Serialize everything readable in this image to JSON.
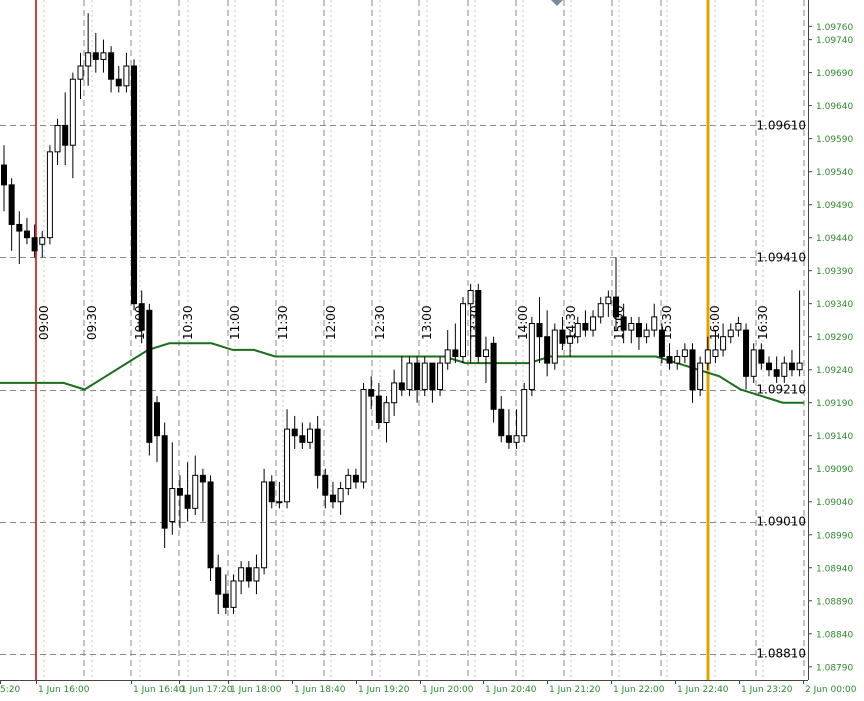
{
  "chart_data": {
    "type": "candlestick",
    "ylim": [
      1.0877,
      1.098
    ],
    "y_ticks": [
      "1.09760",
      "1.09740",
      "1.09690",
      "1.09640",
      "1.09590",
      "1.09540",
      "1.09490",
      "1.09440",
      "1.09390",
      "1.09340",
      "1.09290",
      "1.09240",
      "1.09190",
      "1.09140",
      "1.09090",
      "1.09040",
      "1.08990",
      "1.08940",
      "1.08890",
      "1.08840",
      "1.08790"
    ],
    "level_labels": [
      "1.09610",
      "1.09410",
      "1.09210",
      "1.09010",
      "1.08810"
    ],
    "time_labels": [
      "5:20",
      "1 Jun 16:00",
      "1 Jun 16:40",
      "1 Jun 17:20",
      "1 Jun 18:00",
      "1 Jun 18:40",
      "1 Jun 19:20",
      "1 Jun 20:00",
      "1 Jun 20:40",
      "1 Jun 21:20",
      "1 Jun 22:00",
      "1 Jun 22:40",
      "1 Jun 23:20",
      "2 Jun 00:00"
    ],
    "session_labels": [
      "09:00",
      "09:30",
      "10:00",
      "10:30",
      "11:00",
      "11:30",
      "12:00",
      "12:30",
      "13:00",
      "13:30",
      "14:00",
      "14:30",
      "15:00",
      "15:30",
      "16:00",
      "16:30"
    ],
    "candles": [
      {
        "o": 1.0955,
        "h": 1.0958,
        "l": 1.0948,
        "c": 1.0952
      },
      {
        "o": 1.0952,
        "h": 1.0953,
        "l": 1.0942,
        "c": 1.0946
      },
      {
        "o": 1.0946,
        "h": 1.0948,
        "l": 1.094,
        "c": 1.0945
      },
      {
        "o": 1.0945,
        "h": 1.0947,
        "l": 1.0943,
        "c": 1.0944
      },
      {
        "o": 1.0944,
        "h": 1.0946,
        "l": 1.0941,
        "c": 1.0942
      },
      {
        "o": 1.0943,
        "h": 1.0945,
        "l": 1.0941,
        "c": 1.0944
      },
      {
        "o": 1.0944,
        "h": 1.0958,
        "l": 1.0943,
        "c": 1.0957
      },
      {
        "o": 1.0957,
        "h": 1.0962,
        "l": 1.0955,
        "c": 1.0961
      },
      {
        "o": 1.0961,
        "h": 1.0966,
        "l": 1.0955,
        "c": 1.0958
      },
      {
        "o": 1.0958,
        "h": 1.0969,
        "l": 1.0953,
        "c": 1.0968
      },
      {
        "o": 1.0968,
        "h": 1.0972,
        "l": 1.0965,
        "c": 1.097
      },
      {
        "o": 1.097,
        "h": 1.0978,
        "l": 1.0967,
        "c": 1.0972
      },
      {
        "o": 1.0972,
        "h": 1.0975,
        "l": 1.0969,
        "c": 1.0971
      },
      {
        "o": 1.0971,
        "h": 1.0974,
        "l": 1.0969,
        "c": 1.0972
      },
      {
        "o": 1.0972,
        "h": 1.0973,
        "l": 1.0966,
        "c": 1.0968
      },
      {
        "o": 1.0968,
        "h": 1.097,
        "l": 1.0966,
        "c": 1.0967
      },
      {
        "o": 1.0967,
        "h": 1.0972,
        "l": 1.0966,
        "c": 1.097
      },
      {
        "o": 1.097,
        "h": 1.0971,
        "l": 1.0933,
        "c": 1.0934
      },
      {
        "o": 1.0934,
        "h": 1.0936,
        "l": 1.0928,
        "c": 1.093
      },
      {
        "o": 1.0933,
        "h": 1.0934,
        "l": 1.0911,
        "c": 1.0913
      },
      {
        "o": 1.0919,
        "h": 1.092,
        "l": 1.091,
        "c": 1.0914
      },
      {
        "o": 1.0914,
        "h": 1.0916,
        "l": 1.0897,
        "c": 1.09
      },
      {
        "o": 1.0901,
        "h": 1.0913,
        "l": 1.0899,
        "c": 1.0906
      },
      {
        "o": 1.0906,
        "h": 1.0908,
        "l": 1.09,
        "c": 1.0905
      },
      {
        "o": 1.0905,
        "h": 1.091,
        "l": 1.0901,
        "c": 1.0903
      },
      {
        "o": 1.0903,
        "h": 1.0911,
        "l": 1.0902,
        "c": 1.0908
      },
      {
        "o": 1.0908,
        "h": 1.0909,
        "l": 1.0901,
        "c": 1.0907
      },
      {
        "o": 1.0907,
        "h": 1.0908,
        "l": 1.0892,
        "c": 1.0894
      },
      {
        "o": 1.0894,
        "h": 1.0896,
        "l": 1.0887,
        "c": 1.089
      },
      {
        "o": 1.089,
        "h": 1.0893,
        "l": 1.0887,
        "c": 1.0888
      },
      {
        "o": 1.0888,
        "h": 1.0893,
        "l": 1.0887,
        "c": 1.0892
      },
      {
        "o": 1.0892,
        "h": 1.0895,
        "l": 1.089,
        "c": 1.0894
      },
      {
        "o": 1.0894,
        "h": 1.0895,
        "l": 1.0891,
        "c": 1.0892
      },
      {
        "o": 1.0892,
        "h": 1.0896,
        "l": 1.089,
        "c": 1.0894
      },
      {
        "o": 1.0894,
        "h": 1.0909,
        "l": 1.0893,
        "c": 1.0907
      },
      {
        "o": 1.0907,
        "h": 1.0908,
        "l": 1.0903,
        "c": 1.0904
      },
      {
        "o": 1.0904,
        "h": 1.0907,
        "l": 1.0903,
        "c": 1.0904
      },
      {
        "o": 1.0904,
        "h": 1.0918,
        "l": 1.0903,
        "c": 1.0915
      },
      {
        "o": 1.0915,
        "h": 1.0917,
        "l": 1.0912,
        "c": 1.0914
      },
      {
        "o": 1.0914,
        "h": 1.0916,
        "l": 1.0912,
        "c": 1.0913
      },
      {
        "o": 1.0913,
        "h": 1.0916,
        "l": 1.0912,
        "c": 1.0915
      },
      {
        "o": 1.0915,
        "h": 1.0917,
        "l": 1.0906,
        "c": 1.0908
      },
      {
        "o": 1.0908,
        "h": 1.0909,
        "l": 1.0903,
        "c": 1.0905
      },
      {
        "o": 1.0905,
        "h": 1.0907,
        "l": 1.0903,
        "c": 1.0904
      },
      {
        "o": 1.0904,
        "h": 1.0907,
        "l": 1.0902,
        "c": 1.0906
      },
      {
        "o": 1.0906,
        "h": 1.0909,
        "l": 1.0905,
        "c": 1.0908
      },
      {
        "o": 1.0908,
        "h": 1.0909,
        "l": 1.0906,
        "c": 1.0907
      },
      {
        "o": 1.0907,
        "h": 1.0922,
        "l": 1.0906,
        "c": 1.0921
      },
      {
        "o": 1.0921,
        "h": 1.0923,
        "l": 1.0918,
        "c": 1.092
      },
      {
        "o": 1.092,
        "h": 1.0922,
        "l": 1.0915,
        "c": 1.0916
      },
      {
        "o": 1.0916,
        "h": 1.092,
        "l": 1.0913,
        "c": 1.0919
      },
      {
        "o": 1.0919,
        "h": 1.0924,
        "l": 1.0917,
        "c": 1.0922
      },
      {
        "o": 1.0922,
        "h": 1.0926,
        "l": 1.092,
        "c": 1.0921
      },
      {
        "o": 1.0921,
        "h": 1.0926,
        "l": 1.092,
        "c": 1.0925
      },
      {
        "o": 1.0925,
        "h": 1.0926,
        "l": 1.0919,
        "c": 1.0921
      },
      {
        "o": 1.0921,
        "h": 1.0926,
        "l": 1.092,
        "c": 1.0925
      },
      {
        "o": 1.0925,
        "h": 1.0925,
        "l": 1.0919,
        "c": 1.0921
      },
      {
        "o": 1.0921,
        "h": 1.0926,
        "l": 1.092,
        "c": 1.0925
      },
      {
        "o": 1.0925,
        "h": 1.093,
        "l": 1.0924,
        "c": 1.0927
      },
      {
        "o": 1.0927,
        "h": 1.0931,
        "l": 1.0925,
        "c": 1.0926
      },
      {
        "o": 1.0926,
        "h": 1.0935,
        "l": 1.0925,
        "c": 1.0934
      },
      {
        "o": 1.0934,
        "h": 1.0937,
        "l": 1.0925,
        "c": 1.0936
      },
      {
        "o": 1.0936,
        "h": 1.0937,
        "l": 1.0925,
        "c": 1.0926
      },
      {
        "o": 1.0926,
        "h": 1.0929,
        "l": 1.0922,
        "c": 1.0927
      },
      {
        "o": 1.0928,
        "h": 1.0929,
        "l": 1.0916,
        "c": 1.0918
      },
      {
        "o": 1.0918,
        "h": 1.092,
        "l": 1.0913,
        "c": 1.0914
      },
      {
        "o": 1.0914,
        "h": 1.0918,
        "l": 1.0912,
        "c": 1.0913
      },
      {
        "o": 1.0913,
        "h": 1.0918,
        "l": 1.0912,
        "c": 1.0914
      },
      {
        "o": 1.0914,
        "h": 1.0922,
        "l": 1.0913,
        "c": 1.0921
      },
      {
        "o": 1.0921,
        "h": 1.0932,
        "l": 1.092,
        "c": 1.0931
      },
      {
        "o": 1.0931,
        "h": 1.0935,
        "l": 1.0925,
        "c": 1.0929
      },
      {
        "o": 1.0929,
        "h": 1.0933,
        "l": 1.0923,
        "c": 1.0925
      },
      {
        "o": 1.0925,
        "h": 1.0931,
        "l": 1.0924,
        "c": 1.093
      },
      {
        "o": 1.093,
        "h": 1.0932,
        "l": 1.0927,
        "c": 1.0928
      },
      {
        "o": 1.0928,
        "h": 1.093,
        "l": 1.0926,
        "c": 1.0929
      },
      {
        "o": 1.0929,
        "h": 1.0932,
        "l": 1.0928,
        "c": 1.0931
      },
      {
        "o": 1.0931,
        "h": 1.0933,
        "l": 1.0929,
        "c": 1.093
      },
      {
        "o": 1.093,
        "h": 1.0933,
        "l": 1.0929,
        "c": 1.0932
      },
      {
        "o": 1.0932,
        "h": 1.0935,
        "l": 1.0931,
        "c": 1.0934
      },
      {
        "o": 1.0934,
        "h": 1.0936,
        "l": 1.0932,
        "c": 1.0935
      },
      {
        "o": 1.0935,
        "h": 1.0941,
        "l": 1.093,
        "c": 1.0932
      },
      {
        "o": 1.0932,
        "h": 1.0934,
        "l": 1.0928,
        "c": 1.093
      },
      {
        "o": 1.093,
        "h": 1.0932,
        "l": 1.0928,
        "c": 1.0931
      },
      {
        "o": 1.0931,
        "h": 1.0932,
        "l": 1.0927,
        "c": 1.0929
      },
      {
        "o": 1.0929,
        "h": 1.0931,
        "l": 1.0928,
        "c": 1.093
      },
      {
        "o": 1.093,
        "h": 1.0934,
        "l": 1.0929,
        "c": 1.0932
      },
      {
        "o": 1.093,
        "h": 1.0931,
        "l": 1.0925,
        "c": 1.0926
      },
      {
        "o": 1.0926,
        "h": 1.0928,
        "l": 1.0924,
        "c": 1.0925
      },
      {
        "o": 1.0925,
        "h": 1.0927,
        "l": 1.0924,
        "c": 1.0926
      },
      {
        "o": 1.0926,
        "h": 1.0928,
        "l": 1.0925,
        "c": 1.0927
      },
      {
        "o": 1.0927,
        "h": 1.0928,
        "l": 1.0919,
        "c": 1.0921
      },
      {
        "o": 1.0921,
        "h": 1.0926,
        "l": 1.092,
        "c": 1.0925
      },
      {
        "o": 1.0925,
        "h": 1.0929,
        "l": 1.0924,
        "c": 1.0927
      },
      {
        "o": 1.0926,
        "h": 1.093,
        "l": 1.0925,
        "c": 1.0927
      },
      {
        "o": 1.0927,
        "h": 1.0931,
        "l": 1.0926,
        "c": 1.0929
      },
      {
        "o": 1.0929,
        "h": 1.0931,
        "l": 1.0928,
        "c": 1.093
      },
      {
        "o": 1.093,
        "h": 1.0932,
        "l": 1.0929,
        "c": 1.0931
      },
      {
        "o": 1.093,
        "h": 1.0931,
        "l": 1.0921,
        "c": 1.0923
      },
      {
        "o": 1.0923,
        "h": 1.0928,
        "l": 1.0922,
        "c": 1.0927
      },
      {
        "o": 1.0927,
        "h": 1.0928,
        "l": 1.0924,
        "c": 1.0925
      },
      {
        "o": 1.0925,
        "h": 1.0926,
        "l": 1.0923,
        "c": 1.0924
      },
      {
        "o": 1.0924,
        "h": 1.0926,
        "l": 1.0922,
        "c": 1.0923
      },
      {
        "o": 1.0923,
        "h": 1.0926,
        "l": 1.0922,
        "c": 1.0925
      },
      {
        "o": 1.0925,
        "h": 1.0927,
        "l": 1.0923,
        "c": 1.0924
      },
      {
        "o": 1.0924,
        "h": 1.0936,
        "l": 1.0923,
        "c": 1.0925
      }
    ],
    "moving_average": [
      1.0922,
      1.0922,
      1.0922,
      1.0922,
      1.0921,
      1.0923,
      1.0925,
      1.0927,
      1.0928,
      1.0928,
      1.0928,
      1.0927,
      1.0927,
      1.0926,
      1.0926,
      1.0926,
      1.0926,
      1.0926,
      1.0926,
      1.0926,
      1.0926,
      1.0926,
      1.0925,
      1.0925,
      1.0925,
      1.0925,
      1.0926,
      1.0926,
      1.0926,
      1.0926,
      1.0926,
      1.0926,
      1.0925,
      1.0924,
      1.0923,
      1.0921,
      1.092,
      1.0919,
      1.0919
    ],
    "colors": {
      "bull_fill": "#ffffff",
      "bear_fill": "#000000",
      "candle_outline": "#000000",
      "moving_average": "#1b6e1b",
      "axis_text": "#2e8b2e",
      "level_text": "#000000",
      "red_line": "#cc0000",
      "orange_line": "#e6a000",
      "grid": "#8a8a8a",
      "session_line": "#a8a8a8"
    }
  }
}
